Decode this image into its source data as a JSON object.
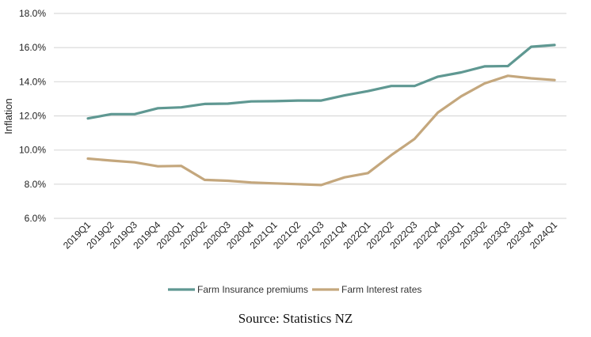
{
  "chart_data": {
    "type": "line",
    "title": "",
    "xlabel": "",
    "ylabel": "Inflation",
    "ylim": [
      6.0,
      18.0
    ],
    "yticks": [
      "6.0%",
      "8.0%",
      "10.0%",
      "12.0%",
      "14.0%",
      "16.0%",
      "18.0%"
    ],
    "grid": true,
    "legend_position": "bottom",
    "categories": [
      "2019Q1",
      "2019Q2",
      "2019Q3",
      "2019Q4",
      "2020Q1",
      "2020Q2",
      "2020Q3",
      "2020Q4",
      "2021Q1",
      "2021Q2",
      "2021Q3",
      "2021Q4",
      "2022Q1",
      "2022Q2",
      "2022Q3",
      "2022Q4",
      "2023Q1",
      "2023Q2",
      "2023Q3",
      "2023Q4",
      "2024Q1"
    ],
    "series": [
      {
        "name": "Farm Insurance premiums",
        "color": "#5f9892",
        "values": [
          11.85,
          12.1,
          12.1,
          12.45,
          12.5,
          12.7,
          12.72,
          12.85,
          12.86,
          12.9,
          12.9,
          13.2,
          13.45,
          13.75,
          13.75,
          14.3,
          14.55,
          14.9,
          14.92,
          16.05,
          16.15
        ]
      },
      {
        "name": "Farm Interest rates",
        "color": "#c4a77d",
        "values": [
          9.5,
          9.38,
          9.28,
          9.05,
          9.07,
          8.25,
          8.2,
          8.1,
          8.05,
          8.0,
          7.95,
          8.4,
          8.65,
          9.7,
          10.65,
          12.2,
          13.15,
          13.9,
          14.35,
          14.2,
          14.1
        ]
      }
    ]
  },
  "source": "Source: Statistics NZ"
}
